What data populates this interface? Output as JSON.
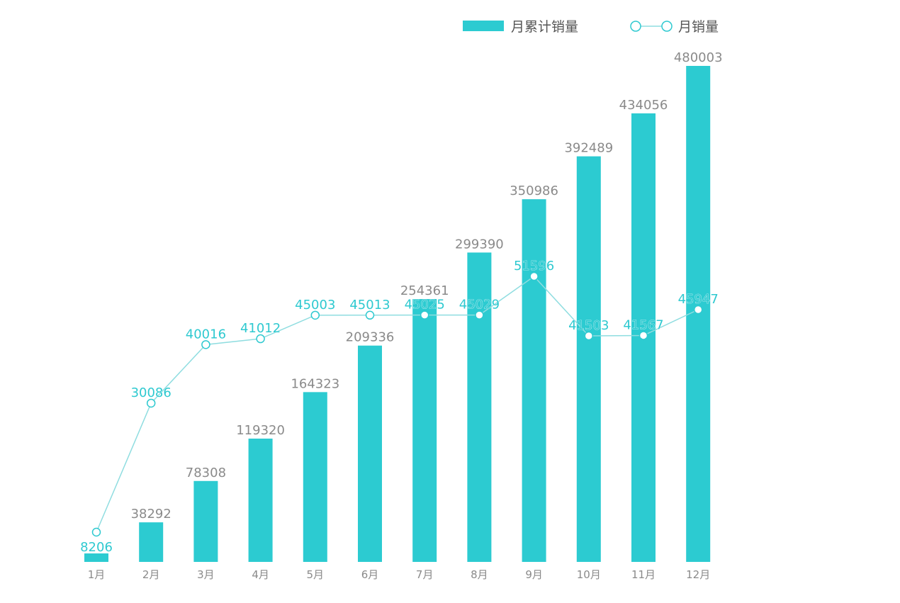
{
  "chart_data": {
    "type": "bar",
    "categories": [
      "1月",
      "2月",
      "3月",
      "4月",
      "5月",
      "6月",
      "7月",
      "8月",
      "9月",
      "10月",
      "11月",
      "12月"
    ],
    "series": [
      {
        "name": "月累计销量",
        "type": "bar",
        "values": [
          8206,
          38292,
          78308,
          119320,
          164323,
          209336,
          254361,
          299390,
          350986,
          392489,
          434056,
          480003
        ]
      },
      {
        "name": "月销量",
        "type": "line",
        "values": [
          8206,
          30086,
          40016,
          41012,
          45003,
          45013,
          45025,
          45029,
          51596,
          41503,
          41567,
          45947
        ]
      }
    ],
    "legend_position": "top-right",
    "grid": false,
    "colors": {
      "bar": "#2ccbd1",
      "line": "#8fdde0",
      "line_marker_fill": "#ffffff",
      "line_label": "#2ec9d0",
      "bar_label": "#8a8a8a",
      "tick_label": "#8a8a8a"
    }
  }
}
